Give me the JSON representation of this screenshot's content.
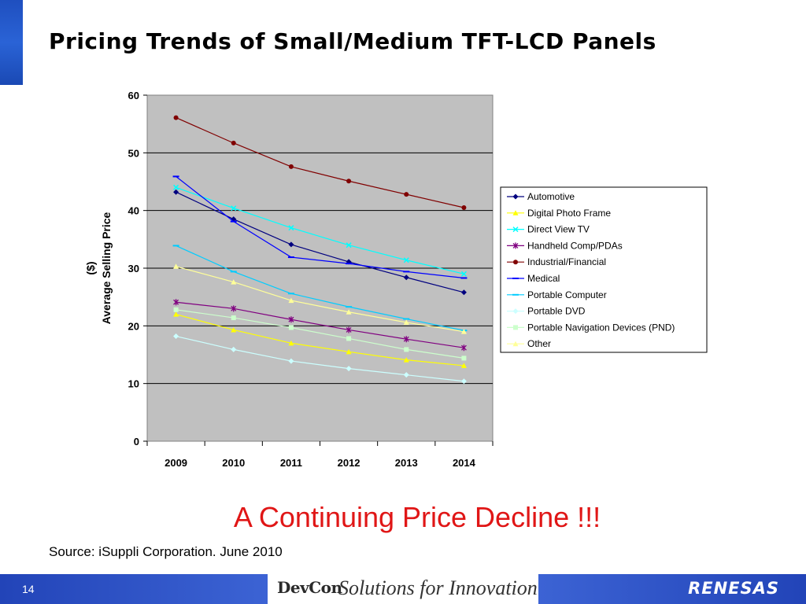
{
  "slide": {
    "title": "Pricing Trends of Small/Medium TFT-LCD Panels",
    "callout": "A Continuing Price Decline !!!",
    "source": "Source: iSuppli Corporation. June 2010",
    "page_number": "14"
  },
  "footer": {
    "event_logo": "DevCon",
    "tagline": "Solutions for Innovation",
    "company_logo": "RENESAS"
  },
  "chart_data": {
    "type": "line",
    "title": "",
    "xlabel": "",
    "ylabel_lines": [
      "($)",
      "Average Selling Price"
    ],
    "categories": [
      "2009",
      "2010",
      "2011",
      "2012",
      "2013",
      "2014"
    ],
    "ylim": [
      0,
      60
    ],
    "yticks": [
      0,
      10,
      20,
      30,
      40,
      50,
      60
    ],
    "grid": true,
    "legend_position": "right",
    "plot_background": "#c0c0c0",
    "series": [
      {
        "name": "Automotive",
        "color": "#00007f",
        "marker": "diamond",
        "values": [
          43.2,
          38.5,
          34.1,
          31.1,
          28.4,
          25.8
        ]
      },
      {
        "name": "Digital Photo Frame",
        "color": "#ffff00",
        "marker": "triangle",
        "values": [
          22.0,
          19.3,
          17.0,
          15.5,
          14.1,
          13.1
        ]
      },
      {
        "name": "Direct View TV",
        "color": "#00ffff",
        "marker": "x",
        "values": [
          44.0,
          40.4,
          37.0,
          34.0,
          31.4,
          29.0
        ]
      },
      {
        "name": "Handheld Comp/PDAs",
        "color": "#800080",
        "marker": "star",
        "values": [
          24.1,
          23.0,
          21.1,
          19.3,
          17.7,
          16.2
        ]
      },
      {
        "name": "Industrial/Financial",
        "color": "#800000",
        "marker": "circle",
        "values": [
          56.1,
          51.7,
          47.6,
          45.1,
          42.8,
          40.5
        ]
      },
      {
        "name": "Medical",
        "color": "#0000ff",
        "marker": "dash",
        "values": [
          45.9,
          38.1,
          31.9,
          30.8,
          29.4,
          28.3
        ]
      },
      {
        "name": "Portable Computer",
        "color": "#00ccff",
        "marker": "dash",
        "values": [
          33.9,
          29.4,
          25.6,
          23.3,
          21.2,
          19.2
        ]
      },
      {
        "name": "Portable DVD",
        "color": "#ccffff",
        "marker": "diamond",
        "values": [
          18.2,
          15.9,
          13.9,
          12.6,
          11.5,
          10.4
        ]
      },
      {
        "name": "Portable Navigation Devices (PND)",
        "color": "#ccffcc",
        "marker": "square",
        "values": [
          22.8,
          21.4,
          19.7,
          17.8,
          15.9,
          14.4
        ]
      },
      {
        "name": "Other",
        "color": "#ffff99",
        "marker": "triangle",
        "values": [
          30.3,
          27.6,
          24.4,
          22.4,
          20.6,
          19.0
        ]
      }
    ]
  }
}
